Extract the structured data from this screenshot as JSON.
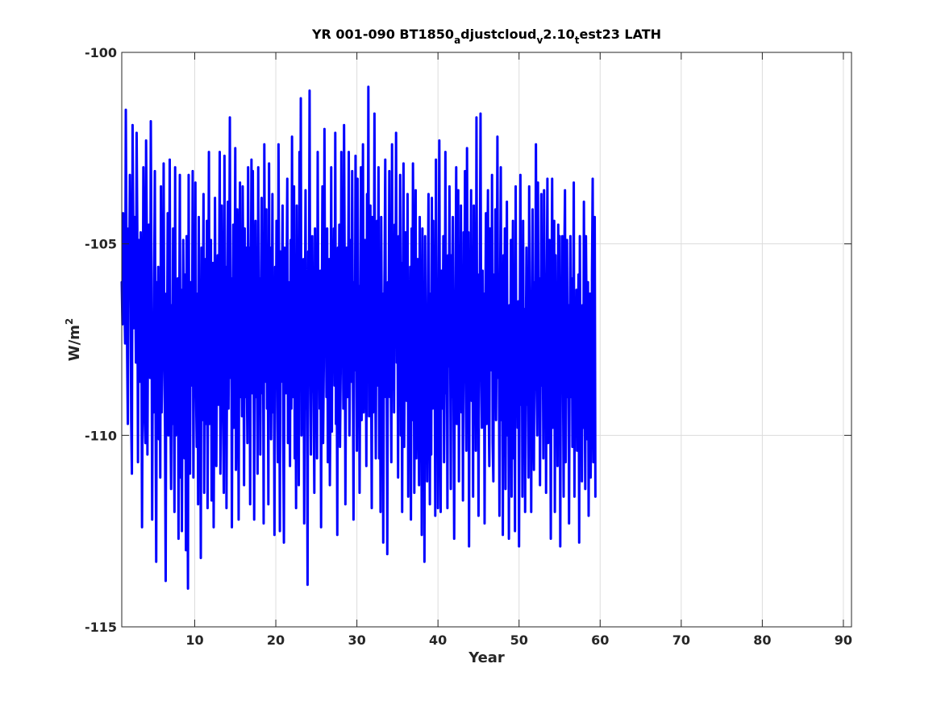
{
  "chart_data": {
    "type": "line",
    "title_parts": [
      {
        "text": "YR 001-090 BT1850",
        "sub": ""
      },
      {
        "text": "a",
        "sub": "sub"
      },
      {
        "text": "djustcloud",
        "sub": ""
      },
      {
        "text": "v",
        "sub": "sub"
      },
      {
        "text": "2.10",
        "sub": ""
      },
      {
        "text": "t",
        "sub": "sub"
      },
      {
        "text": "est23 LATH",
        "sub": ""
      }
    ],
    "xlabel": "Year",
    "ylabel_base": "W/m",
    "ylabel_sup": "2",
    "xlim": [
      1,
      91
    ],
    "ylim": [
      -115,
      -100
    ],
    "xticks": [
      10,
      20,
      30,
      40,
      50,
      60,
      70,
      80,
      90
    ],
    "yticks": [
      -100,
      -105,
      -110,
      -115
    ],
    "grid": true,
    "line_color": "#0000ff",
    "series": [
      {
        "x_start": 1.0,
        "x_step": 0.08333,
        "values": [
          -106.0,
          -107.1,
          -104.2,
          -104.6,
          -106.5,
          -107.6,
          -101.5,
          -105.2,
          -107.9,
          -109.7,
          -104.6,
          -106.3,
          -103.2,
          -105.5,
          -109.6,
          -111.0,
          -101.9,
          -104.5,
          -107.2,
          -104.3,
          -106.0,
          -108.1,
          -102.1,
          -104.6,
          -110.7,
          -104.9,
          -107.9,
          -108.6,
          -104.7,
          -106.9,
          -112.4,
          -108.2,
          -103.0,
          -105.4,
          -109.5,
          -110.2,
          -102.3,
          -104.6,
          -110.5,
          -106.5,
          -104.5,
          -107.0,
          -108.5,
          -101.8,
          -105.9,
          -112.2,
          -106.8,
          -109.4,
          -105.8,
          -103.1,
          -108.9,
          -113.3,
          -106.0,
          -108.0,
          -105.6,
          -110.1,
          -106.6,
          -111.1,
          -103.5,
          -109.4,
          -106.8,
          -107.5,
          -102.9,
          -108.3,
          -109.8,
          -113.8,
          -106.3,
          -108.0,
          -104.2,
          -110.0,
          -107.9,
          -102.8,
          -109.1,
          -111.4,
          -106.6,
          -109.7,
          -104.6,
          -108.6,
          -112.0,
          -103.0,
          -110.0,
          -106.8,
          -109.7,
          -105.9,
          -112.7,
          -107.5,
          -103.2,
          -111.1,
          -106.2,
          -112.5,
          -108.0,
          -104.9,
          -107.4,
          -110.6,
          -105.8,
          -113.0,
          -104.8,
          -109.0,
          -114.0,
          -103.2,
          -109.3,
          -111.0,
          -106.0,
          -108.7,
          -107.5,
          -103.1,
          -111.1,
          -106.8,
          -108.2,
          -103.4,
          -108.9,
          -110.3,
          -106.3,
          -111.8,
          -104.3,
          -109.4,
          -106.7,
          -113.2,
          -105.1,
          -109.6,
          -107.2,
          -103.7,
          -111.5,
          -107.9,
          -105.4,
          -109.7,
          -104.4,
          -111.9,
          -107.4,
          -102.6,
          -109.7,
          -106.7,
          -104.9,
          -111.7,
          -106.7,
          -105.5,
          -112.4,
          -108.3,
          -103.8,
          -108.2,
          -110.8,
          -107.0,
          -105.3,
          -109.2,
          -106.5,
          -102.6,
          -111.0,
          -108.4,
          -104.0,
          -107.5,
          -109.4,
          -111.5,
          -102.7,
          -108.3,
          -105.6,
          -111.9,
          -107.0,
          -103.9,
          -109.3,
          -106.4,
          -101.7,
          -108.5,
          -105.9,
          -112.4,
          -107.4,
          -104.5,
          -109.8,
          -106.7,
          -102.5,
          -110.9,
          -108.5,
          -104.1,
          -106.4,
          -112.2,
          -105.7,
          -103.4,
          -109.0,
          -107.0,
          -109.5,
          -103.5,
          -106.5,
          -111.3,
          -104.6,
          -109.0,
          -105.1,
          -108.3,
          -110.2,
          -103.0,
          -107.5,
          -105.1,
          -111.8,
          -106.3,
          -102.8,
          -108.9,
          -103.1,
          -107.2,
          -112.2,
          -106.0,
          -104.4,
          -109.0,
          -107.0,
          -111.0,
          -103.0,
          -108.5,
          -105.9,
          -110.5,
          -106.7,
          -103.8,
          -108.9,
          -106.4,
          -112.3,
          -102.4,
          -107.0,
          -108.6,
          -104.1,
          -109.3,
          -107.4,
          -111.8,
          -102.9,
          -108.8,
          -105.1,
          -110.1,
          -107.5,
          -103.7,
          -109.4,
          -107.2,
          -112.6,
          -105.6,
          -108.5,
          -104.4,
          -108.5,
          -110.7,
          -102.4,
          -106.8,
          -112.5,
          -105.2,
          -108.6,
          -106.5,
          -104.0,
          -110.0,
          -112.8,
          -105.1,
          -107.8,
          -108.9,
          -105.9,
          -103.3,
          -110.2,
          -106.0,
          -108.0,
          -110.8,
          -104.9,
          -109.3,
          -102.2,
          -109.0,
          -107.5,
          -103.5,
          -110.6,
          -106.8,
          -111.9,
          -104.0,
          -109.4,
          -107.8,
          -111.3,
          -102.6,
          -107.8,
          -101.2,
          -110.0,
          -106.9,
          -109.7,
          -105.4,
          -112.3,
          -107.2,
          -103.6,
          -109.3,
          -108.1,
          -113.9,
          -105.2,
          -107.0,
          -101.0,
          -108.3,
          -110.5,
          -106.2,
          -104.8,
          -107.8,
          -108.9,
          -111.5,
          -104.6,
          -108.0,
          -106.6,
          -110.6,
          -102.6,
          -107.3,
          -106.6,
          -109.3,
          -105.7,
          -112.4,
          -106.9,
          -103.5,
          -110.2,
          -108.2,
          -102.0,
          -107.5,
          -106.2,
          -109.0,
          -104.6,
          -110.7,
          -107.6,
          -105.4,
          -111.3,
          -108.8,
          -103.0,
          -109.9,
          -105.3,
          -107.3,
          -104.6,
          -108.7,
          -102.1,
          -109.7,
          -106.9,
          -112.6,
          -105.1,
          -107.6,
          -104.5,
          -110.3,
          -108.4,
          -102.6,
          -107.7,
          -106.5,
          -109.3,
          -101.9,
          -105.8,
          -111.8,
          -107.6,
          -105.1,
          -109.0,
          -106.6,
          -102.6,
          -110.0,
          -107.4,
          -104.9,
          -108.6,
          -103.1,
          -107.6,
          -112.2,
          -106.0,
          -108.3,
          -102.7,
          -106.5,
          -110.4,
          -103.3,
          -108.5,
          -106.1,
          -111.5,
          -107.5,
          -103.0,
          -109.6,
          -106.5,
          -102.4,
          -109.4,
          -108.3,
          -104.9,
          -106.2,
          -110.8,
          -103.7,
          -107.9,
          -100.9,
          -109.5,
          -107.6,
          -104.0,
          -108.0,
          -111.9,
          -104.3,
          -109.4,
          -107.2,
          -101.6,
          -107.8,
          -110.6,
          -105.2,
          -104.4,
          -108.7,
          -103.0,
          -110.6,
          -106.2,
          -112.0,
          -104.3,
          -108.0,
          -106.3,
          -112.8,
          -107.6,
          -105.7,
          -102.8,
          -109.0,
          -107.0,
          -113.1,
          -106.0,
          -107.7,
          -103.1,
          -109.0,
          -107.6,
          -110.7,
          -102.4,
          -108.8,
          -105.9,
          -109.4,
          -104.5,
          -107.7,
          -102.1,
          -108.1,
          -106.0,
          -111.1,
          -104.8,
          -107.4,
          -103.2,
          -110.0,
          -105.5,
          -112.0,
          -105.9,
          -102.9,
          -110.3,
          -107.3,
          -104.7,
          -108.2,
          -109.1,
          -103.7,
          -111.6,
          -106.5,
          -107.8,
          -105.6,
          -112.2,
          -104.6,
          -109.6,
          -102.9,
          -106.3,
          -111.5,
          -108.3,
          -103.6,
          -110.6,
          -107.3,
          -105.4,
          -108.6,
          -111.3,
          -104.3,
          -107.9,
          -106.7,
          -112.6,
          -104.6,
          -109.7,
          -106.1,
          -113.3,
          -104.8,
          -109.2,
          -107.0,
          -111.2,
          -106.5,
          -103.7,
          -107.9,
          -111.8,
          -106.3,
          -110.5,
          -103.8,
          -109.3,
          -104.4,
          -108.2,
          -107.0,
          -112.1,
          -102.8,
          -109.2,
          -106.2,
          -111.9,
          -106.2,
          -102.3,
          -108.5,
          -112.0,
          -105.7,
          -109.3,
          -107.7,
          -104.8,
          -110.7,
          -108.3,
          -102.6,
          -108.9,
          -106.2,
          -111.9,
          -105.3,
          -108.2,
          -103.5,
          -107.1,
          -111.4,
          -105.3,
          -109.0,
          -104.3,
          -108.9,
          -112.7,
          -107.3,
          -106.2,
          -103.0,
          -109.7,
          -108.0,
          -103.6,
          -111.2,
          -106.4,
          -108.7,
          -104.0,
          -109.4,
          -106.6,
          -111.7,
          -104.7,
          -107.6,
          -103.1,
          -108.6,
          -110.4,
          -102.5,
          -107.6,
          -104.7,
          -112.9,
          -106.4,
          -108.1,
          -103.6,
          -109.1,
          -106.7,
          -111.6,
          -104.0,
          -108.7,
          -106.4,
          -110.4,
          -101.7,
          -108.1,
          -105.8,
          -112.1,
          -107.1,
          -106.0,
          -101.6,
          -108.1,
          -109.8,
          -105.7,
          -109.6,
          -106.3,
          -112.3,
          -107.2,
          -104.2,
          -109.7,
          -106.2,
          -103.6,
          -109.1,
          -110.8,
          -104.6,
          -107.7,
          -108.3,
          -103.2,
          -110.2,
          -111.2,
          -105.8,
          -109.2,
          -104.1,
          -109.6,
          -106.8,
          -102.2,
          -108.5,
          -106.5,
          -112.1,
          -106.3,
          -103.0,
          -109.6,
          -106.8,
          -112.6,
          -105.3,
          -109.2,
          -104.6,
          -111.4,
          -107.0,
          -103.9,
          -110.0,
          -106.8,
          -112.7,
          -106.6,
          -109.0,
          -104.9,
          -111.6,
          -107.1,
          -104.4,
          -110.6,
          -106.1,
          -112.5,
          -103.5,
          -108.3,
          -106.8,
          -109.8,
          -106.5,
          -112.9,
          -107.7,
          -103.2,
          -109.2,
          -106.0,
          -111.6,
          -104.4,
          -109.6,
          -106.7,
          -112.0,
          -107.8,
          -105.1,
          -109.2,
          -108.1,
          -111.1,
          -103.5,
          -108.1,
          -106.7,
          -112.0,
          -106.7,
          -104.1,
          -109.1,
          -110.9,
          -106.0,
          -107.0,
          -102.4,
          -108.8,
          -110.0,
          -103.4,
          -108.5,
          -105.9,
          -111.3,
          -107.6,
          -103.7,
          -108.7,
          -106.9,
          -110.6,
          -103.6,
          -107.5,
          -105.8,
          -111.5,
          -106.2,
          -103.3,
          -110.2,
          -108.3,
          -104.9,
          -107.2,
          -112.7,
          -106.6,
          -103.3,
          -109.8,
          -107.3,
          -104.4,
          -112.0,
          -105.3,
          -109.2,
          -107.1,
          -110.8,
          -104.5,
          -108.1,
          -104.8,
          -112.9,
          -106.8,
          -108.6,
          -104.8,
          -108.1,
          -111.6,
          -105.4,
          -103.6,
          -110.7,
          -107.6,
          -104.9,
          -109.0,
          -106.6,
          -112.3,
          -107.5,
          -104.8,
          -109.0,
          -105.9,
          -110.3,
          -107.5,
          -103.4,
          -111.6,
          -106.8,
          -109.5,
          -106.2,
          -110.4,
          -107.5,
          -105.8,
          -112.8,
          -104.8,
          -109.1,
          -107.0,
          -111.2,
          -106.6,
          -109.8,
          -103.9,
          -108.1,
          -111.4,
          -104.8,
          -107.1,
          -110.1,
          -106.0,
          -112.1,
          -107.8,
          -106.3,
          -111.1,
          -109.0,
          -105.7,
          -103.3,
          -110.7,
          -107.3,
          -104.3,
          -111.6
        ]
      }
    ]
  }
}
